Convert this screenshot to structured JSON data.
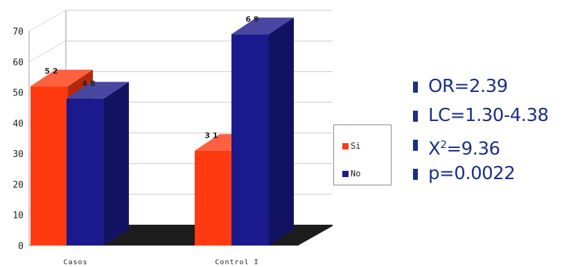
{
  "chart_data": {
    "type": "bar",
    "title": "",
    "xlabel": "",
    "ylabel": "",
    "categories": [
      "Casos",
      "Control I"
    ],
    "series": [
      {
        "name": "Si",
        "values": [
          52,
          31
        ],
        "data_labels": [
          "5 2",
          "3 1"
        ],
        "color": "#ff3a10"
      },
      {
        "name": "No",
        "values": [
          48,
          69
        ],
        "data_labels": [
          "4 8",
          "6 9"
        ],
        "color": "#1a1a8c"
      }
    ],
    "ylim": [
      0,
      70
    ],
    "yticks": [
      0,
      10,
      20,
      30,
      40,
      50,
      60,
      70
    ],
    "grid": true,
    "three_d": true,
    "legend_position": "right"
  },
  "stats": [
    {
      "prefix": "OR=2.39",
      "sup": "",
      "suffix": ""
    },
    {
      "prefix": "LC=1.30-4.38",
      "sup": "",
      "suffix": ""
    },
    {
      "prefix": "X",
      "sup": "2",
      "suffix": "=9.36"
    },
    {
      "prefix": "p=0.0022",
      "sup": "",
      "suffix": ""
    }
  ],
  "colors": {
    "stat_text": "#1d2f86",
    "bar_si": "#ff3a10",
    "bar_no": "#1a1a8c"
  }
}
